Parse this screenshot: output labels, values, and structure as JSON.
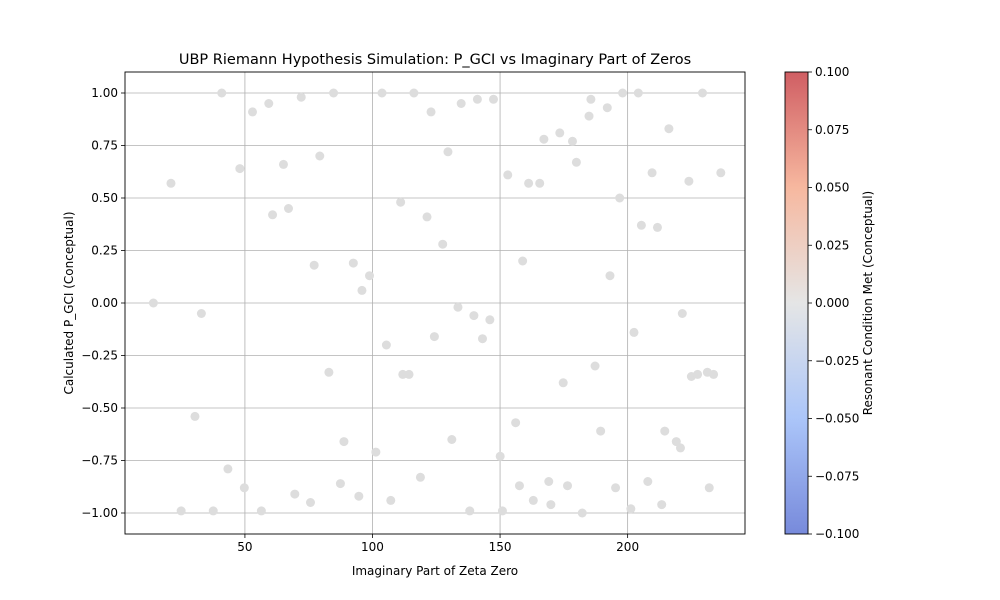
{
  "chart_data": {
    "type": "scatter",
    "title": "UBP Riemann Hypothesis Simulation: P_GCI vs Imaginary Part of Zeros",
    "xlabel": "Imaginary Part of Zeta Zero",
    "ylabel": "Calculated P_GCI (Conceptual)",
    "xlim": [
      3,
      246
    ],
    "ylim": [
      -1.1,
      1.1
    ],
    "xticks": [
      50,
      100,
      150,
      200
    ],
    "yticks": [
      -1.0,
      -0.75,
      -0.5,
      -0.25,
      0.0,
      0.25,
      0.5,
      0.75,
      1.0
    ],
    "xtick_labels": [
      "50",
      "100",
      "150",
      "200"
    ],
    "ytick_labels": [
      "−1.00",
      "−0.75",
      "−0.50",
      "−0.25",
      "0.00",
      "0.25",
      "0.50",
      "0.75",
      "1.00"
    ],
    "grid": true,
    "point_color": "#dddddd",
    "colorbar": {
      "label": "Resonant Condition Met (Conceptual)",
      "range": [
        -0.1,
        0.1
      ],
      "ticks": [
        0.1,
        0.075,
        0.05,
        0.025,
        0.0,
        -0.025,
        -0.05,
        -0.075,
        -0.1
      ],
      "tick_labels": [
        "0.100",
        "0.075",
        "0.050",
        "0.025",
        "0.000",
        "−0.025",
        "−0.050",
        "−0.075",
        "−0.100"
      ],
      "colormap": "coolwarm",
      "colors": [
        "#4a63cf",
        "#8fb2f7",
        "#dcdddd",
        "#f4a07f",
        "#c0282f"
      ]
    },
    "series": [
      {
        "points": [
          [
            14.13,
            0.0
          ],
          [
            21.02,
            0.57
          ],
          [
            25.01,
            -0.99
          ],
          [
            30.42,
            -0.54
          ],
          [
            32.94,
            -0.05
          ],
          [
            37.59,
            -0.99
          ],
          [
            40.92,
            1.0
          ],
          [
            43.33,
            -0.79
          ],
          [
            48.01,
            0.64
          ],
          [
            49.77,
            -0.88
          ],
          [
            52.97,
            0.91
          ],
          [
            56.45,
            -0.99
          ],
          [
            59.35,
            0.95
          ],
          [
            60.83,
            0.42
          ],
          [
            65.11,
            0.66
          ],
          [
            67.08,
            0.45
          ],
          [
            69.55,
            -0.91
          ],
          [
            72.07,
            0.98
          ],
          [
            75.7,
            -0.95
          ],
          [
            77.14,
            0.18
          ],
          [
            79.34,
            0.7
          ],
          [
            82.91,
            -0.33
          ],
          [
            84.74,
            1.0
          ],
          [
            87.43,
            -0.86
          ],
          [
            88.81,
            -0.66
          ],
          [
            92.49,
            0.19
          ],
          [
            94.65,
            -0.92
          ],
          [
            95.87,
            0.06
          ],
          [
            98.83,
            0.13
          ],
          [
            101.32,
            -0.71
          ],
          [
            103.73,
            1.0
          ],
          [
            105.45,
            -0.2
          ],
          [
            107.17,
            -0.94
          ],
          [
            111.03,
            0.48
          ],
          [
            111.87,
            -0.34
          ],
          [
            114.32,
            -0.34
          ],
          [
            116.23,
            1.0
          ],
          [
            118.79,
            -0.83
          ],
          [
            121.37,
            0.41
          ],
          [
            122.95,
            0.91
          ],
          [
            124.26,
            -0.16
          ],
          [
            127.52,
            0.28
          ],
          [
            129.58,
            0.72
          ],
          [
            131.09,
            -0.65
          ],
          [
            133.5,
            -0.02
          ],
          [
            134.76,
            0.95
          ],
          [
            138.12,
            -0.99
          ],
          [
            139.74,
            -0.06
          ],
          [
            141.12,
            0.97
          ],
          [
            143.11,
            -0.17
          ],
          [
            146.0,
            -0.08
          ],
          [
            147.42,
            0.97
          ],
          [
            150.05,
            -0.73
          ],
          [
            150.93,
            -0.99
          ],
          [
            153.02,
            0.61
          ],
          [
            156.11,
            -0.57
          ],
          [
            157.6,
            -0.87
          ],
          [
            158.85,
            0.2
          ],
          [
            161.19,
            0.57
          ],
          [
            163.03,
            -0.94
          ],
          [
            165.54,
            0.57
          ],
          [
            167.18,
            0.78
          ],
          [
            169.09,
            -0.85
          ],
          [
            169.91,
            -0.96
          ],
          [
            173.41,
            0.81
          ],
          [
            174.75,
            -0.38
          ],
          [
            176.44,
            -0.87
          ],
          [
            178.38,
            0.77
          ],
          [
            179.92,
            0.67
          ],
          [
            182.21,
            -1.0
          ],
          [
            184.87,
            0.89
          ],
          [
            185.6,
            0.97
          ],
          [
            187.23,
            -0.3
          ],
          [
            189.42,
            -0.61
          ],
          [
            192.03,
            0.93
          ],
          [
            193.08,
            0.13
          ],
          [
            195.27,
            -0.88
          ],
          [
            196.88,
            0.5
          ],
          [
            198.02,
            1.0
          ],
          [
            201.26,
            -0.98
          ],
          [
            202.49,
            -0.14
          ],
          [
            204.19,
            1.0
          ],
          [
            205.39,
            0.37
          ],
          [
            207.91,
            -0.85
          ],
          [
            209.58,
            0.62
          ],
          [
            211.69,
            0.36
          ],
          [
            213.35,
            -0.96
          ],
          [
            214.55,
            -0.61
          ],
          [
            216.17,
            0.83
          ],
          [
            219.07,
            -0.66
          ],
          [
            220.71,
            -0.69
          ],
          [
            221.43,
            -0.05
          ],
          [
            224.01,
            0.58
          ],
          [
            224.98,
            -0.35
          ],
          [
            227.42,
            -0.34
          ],
          [
            229.34,
            1.0
          ],
          [
            231.25,
            -0.33
          ],
          [
            231.99,
            -0.88
          ],
          [
            233.69,
            -0.34
          ],
          [
            236.52,
            0.62
          ]
        ]
      }
    ]
  }
}
